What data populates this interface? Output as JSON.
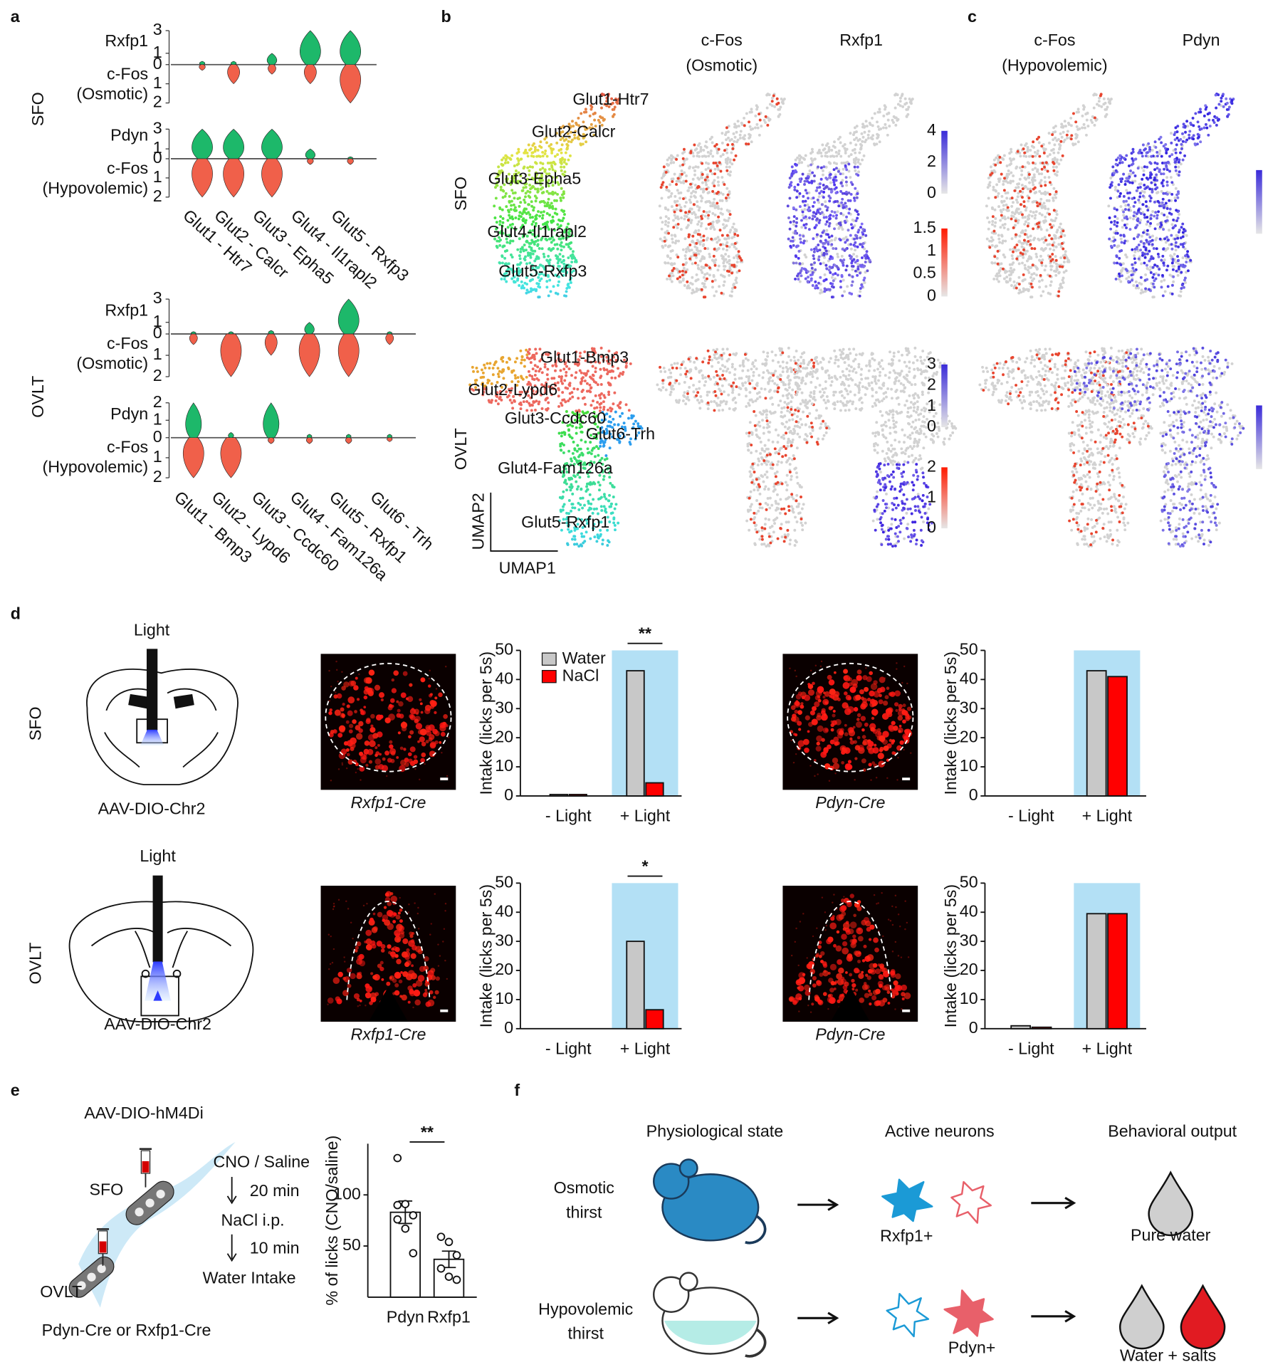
{
  "panel_labels": [
    "a",
    "b",
    "c",
    "d",
    "e",
    "f"
  ],
  "panel_a": {
    "regions": [
      {
        "name": "SFO",
        "clusters": [
          "Glut1 - Htr7",
          "Glut2 - Calcr",
          "Glut3 - Epha5",
          "Glut4 - Il1rapl2",
          "Glut5 - Rxfp3"
        ],
        "rows": [
          {
            "gene": "Rxfp1",
            "fos": "c-Fos",
            "condition": "(Osmotic)",
            "gene_ylim": [
              0,
              3
            ],
            "gene_ticks": [
              3,
              1,
              0
            ],
            "fos_ylim": [
              0,
              2
            ],
            "fos_ticks": [
              1,
              2
            ],
            "gene_values": [
              0.3,
              0.3,
              1,
              3,
              3
            ],
            "fos_values": [
              0.3,
              1,
              0.5,
              1,
              2
            ]
          },
          {
            "gene": "Pdyn",
            "fos": "c-Fos",
            "condition": "(Hypovolemic)",
            "gene_ylim": [
              0,
              3
            ],
            "gene_ticks": [
              3,
              1,
              0
            ],
            "fos_ylim": [
              0,
              2
            ],
            "fos_ticks": [
              1,
              2
            ],
            "gene_values": [
              3,
              3,
              3,
              1,
              0.2
            ],
            "fos_values": [
              2,
              2,
              2,
              0.3,
              0.3
            ]
          }
        ]
      },
      {
        "name": "OVLT",
        "clusters": [
          "Glut1 - Bmp3",
          "Glut2 - Lypd6",
          "Glut3 - Ccdc60",
          "Glut4 - Fam126a",
          "Glut5 - Rxfp1",
          "Glut6 - Trh"
        ],
        "rows": [
          {
            "gene": "Rxfp1",
            "fos": "c-Fos",
            "condition": "(Osmotic)",
            "gene_ylim": [
              0,
              3
            ],
            "gene_ticks": [
              3,
              1,
              0
            ],
            "fos_ylim": [
              0,
              2
            ],
            "fos_ticks": [
              1,
              2
            ],
            "gene_values": [
              0.2,
              0.2,
              0.3,
              1,
              3,
              0.2
            ],
            "fos_values": [
              0.5,
              2,
              1,
              2,
              2,
              0.5
            ]
          },
          {
            "gene": "Pdyn",
            "fos": "c-Fos",
            "condition": "(Hypovolemic)",
            "gene_ylim": [
              0,
              2
            ],
            "gene_ticks": [
              2,
              1,
              0
            ],
            "fos_ylim": [
              0,
              2
            ],
            "fos_ticks": [
              1,
              2
            ],
            "gene_values": [
              2,
              0.3,
              2,
              0.2,
              0.2,
              0.2
            ],
            "fos_values": [
              2,
              2,
              0.3,
              0.3,
              0.3,
              0.2
            ]
          }
        ]
      }
    ]
  },
  "panel_bc": {
    "regions": [
      {
        "name": "SFO",
        "clusters": [
          "Glut1-Htr7",
          "Glut2-Calcr",
          "Glut3-Epha5",
          "Glut4-Il1rapl2",
          "Glut5-Rxfp3"
        ]
      },
      {
        "name": "OVLT",
        "clusters": [
          "Glut1-Bmp3",
          "Glut2-Lypd6",
          "Glut3-Ccdc60",
          "Glut6-Trh",
          "Glut4-Fam126a",
          "Glut5-Rxfp1"
        ]
      }
    ],
    "umap_axes": [
      "UMAP2",
      "UMAP1"
    ],
    "titles": [
      "c-Fos",
      "(Osmotic)",
      "Rxfp1",
      "c-Fos",
      "(Hypovolemic)",
      "Pdyn"
    ],
    "colorbar_ticks": [
      [
        4,
        2,
        0
      ],
      [
        1.5,
        1,
        0.5,
        0
      ],
      [
        3,
        2,
        1,
        0
      ],
      [
        2,
        1,
        0
      ]
    ]
  },
  "panel_d": {
    "regions": [
      "SFO",
      "OVLT"
    ],
    "light": "Light",
    "virus": "AAV-DIO-Chr2",
    "mouse_lines": [
      "Rxfp1-Cre",
      "Pdyn-Cre",
      "Rxfp1-Cre",
      "Pdyn-Cre"
    ]
  },
  "chart_data": [
    {
      "type": "bar",
      "categories": [
        "- Light",
        "+ Light"
      ],
      "ylabel": "Intake (licks per 5s)",
      "ylim": [
        0,
        50
      ],
      "yticks": [
        0,
        10,
        20,
        30,
        40,
        50
      ],
      "significance": "**",
      "series": [
        {
          "name": "Water",
          "color": "#c8c8c8",
          "values": [
            0.5,
            43
          ]
        },
        {
          "name": "NaCl",
          "color": "#ff0000",
          "values": [
            0.5,
            4.5
          ]
        }
      ]
    },
    {
      "type": "bar",
      "categories": [
        "- Light",
        "+ Light"
      ],
      "ylabel": "Intake (licks per 5s)",
      "ylim": [
        0,
        50
      ],
      "yticks": [
        0,
        10,
        20,
        30,
        40,
        50
      ],
      "series": [
        {
          "color": "#c8c8c8",
          "values": [
            0,
            43
          ]
        },
        {
          "color": "#ff0000",
          "values": [
            0,
            41
          ]
        }
      ]
    },
    {
      "type": "bar",
      "categories": [
        "- Light",
        "+ Light"
      ],
      "ylabel": "Intake (licks per 5s)",
      "ylim": [
        0,
        50
      ],
      "yticks": [
        0,
        10,
        20,
        30,
        40,
        50
      ],
      "significance": "*",
      "series": [
        {
          "color": "#c8c8c8",
          "values": [
            0,
            30
          ]
        },
        {
          "color": "#ff0000",
          "values": [
            0,
            6.5
          ]
        }
      ]
    },
    {
      "type": "bar",
      "categories": [
        "- Light",
        "+ Light"
      ],
      "ylabel": "Intake (licks per 5s)",
      "ylim": [
        0,
        50
      ],
      "yticks": [
        0,
        10,
        20,
        30,
        40,
        50
      ],
      "series": [
        {
          "color": "#c8c8c8",
          "values": [
            1,
            39.5
          ]
        },
        {
          "color": "#ff0000",
          "values": [
            0.5,
            39.5
          ]
        }
      ]
    },
    {
      "type": "bar",
      "categories": [
        "Pdyn",
        "Rxfp1"
      ],
      "ylabel": "% of licks (CNO/saline)",
      "ylim": [
        0,
        150
      ],
      "yticks": [
        50,
        100
      ],
      "significance": "**",
      "color": "#ffffff",
      "values": [
        83,
        37
      ],
      "errors": [
        11,
        8
      ],
      "points": [
        [
          136,
          91,
          80,
          76,
          67,
          43,
          90
        ],
        [
          59,
          54,
          41,
          28,
          20,
          17
        ]
      ]
    }
  ],
  "panel_e": {
    "virus": "AAV-DIO-hM4Di",
    "regions": [
      "SFO",
      "OVLT"
    ],
    "mice": "Pdyn-Cre or Rxfp1-Cre",
    "protocol": [
      "CNO / Saline",
      "20 min",
      "NaCl i.p.",
      "10 min",
      "Water Intake"
    ]
  },
  "panel_f": {
    "headers": [
      "Physiological state",
      "Active neurons",
      "Behavioral output"
    ],
    "states": [
      [
        "Osmotic",
        "thirst"
      ],
      [
        "Hypovolemic",
        "thirst"
      ]
    ],
    "neurons": [
      "Rxfp1+",
      "Pdyn+"
    ],
    "outputs": [
      "Pure water",
      "Water + salts"
    ]
  }
}
